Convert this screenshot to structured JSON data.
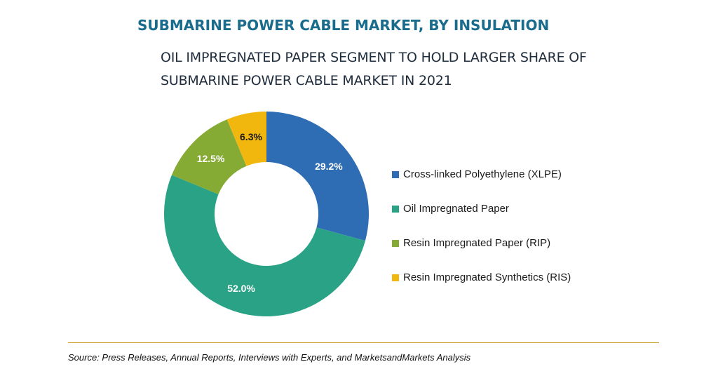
{
  "header": {
    "title": "SUBMARINE POWER CABLE MARKET, BY INSULATION",
    "subtitle": "OIL IMPREGNATED PAPER SEGMENT TO HOLD LARGER SHARE OF SUBMARINE POWER CABLE MARKET IN 2021"
  },
  "chart_data": {
    "type": "pie",
    "donut": true,
    "start_angle_deg": 0,
    "direction": "clockwise",
    "slices": [
      {
        "label": "Cross-linked Polyethylene (XLPE)",
        "value": 29.2,
        "display": "29.2%",
        "color": "#2e6db3"
      },
      {
        "label": "Oil Impregnated Paper",
        "value": 52.0,
        "display": "52.0%",
        "color": "#2aa286"
      },
      {
        "label": "Resin Impregnated Paper (RIP)",
        "value": 12.5,
        "display": "12.5%",
        "color": "#86ab34"
      },
      {
        "label": "Resin Impregnated Synthetics (RIS)",
        "value": 6.3,
        "display": "6.3%",
        "color": "#f2b70f"
      }
    ],
    "legend_position": "right"
  },
  "footer": {
    "source": "Source: Press Releases, Annual Reports, Interviews with Experts, and MarketsandMarkets Analysis"
  }
}
